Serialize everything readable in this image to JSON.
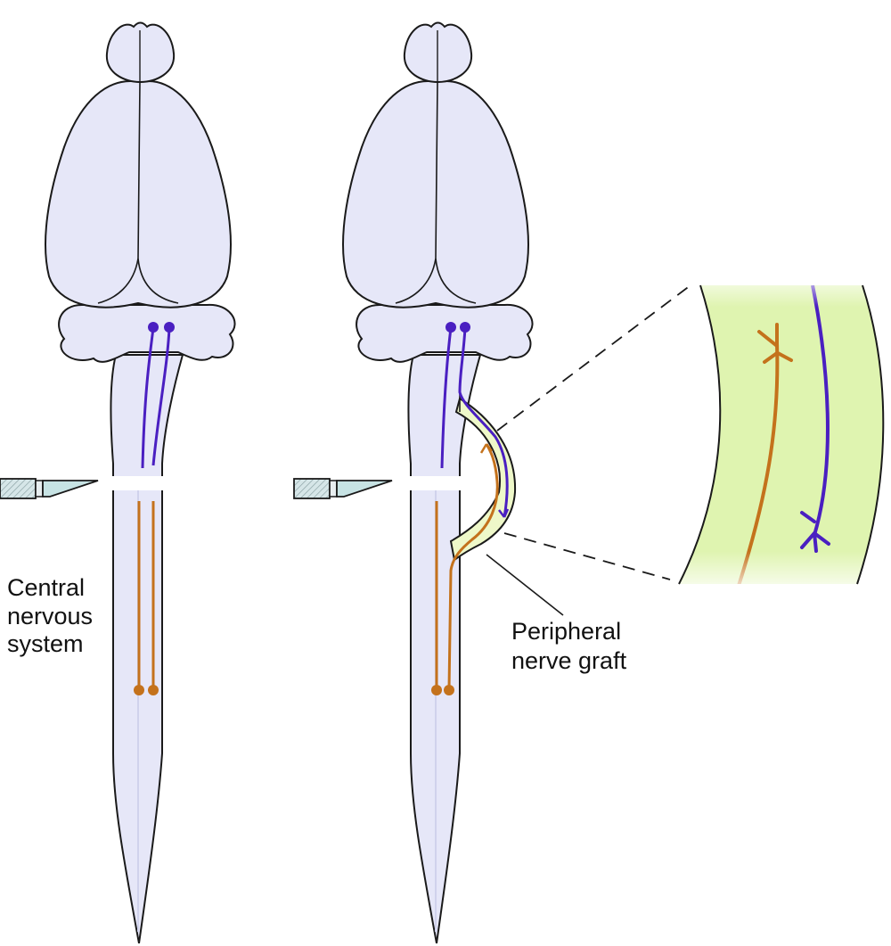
{
  "labels": {
    "cns": [
      "Central",
      "nervous",
      "system"
    ],
    "graft": [
      "Peripheral",
      "nerve graft"
    ]
  },
  "colors": {
    "tissue_fill": "#e6e7f8",
    "outline": "#1a1a1a",
    "upper_axon": "#4a1fc1",
    "lower_axon": "#c4721c",
    "graft_fill": "#eef8c9",
    "graft_zoom_fill": "#dff4b0",
    "blade": "#c7e3e4"
  },
  "icons": [
    "scalpel-icon",
    "brain-diagram-icon",
    "axon-arrow-icon"
  ]
}
